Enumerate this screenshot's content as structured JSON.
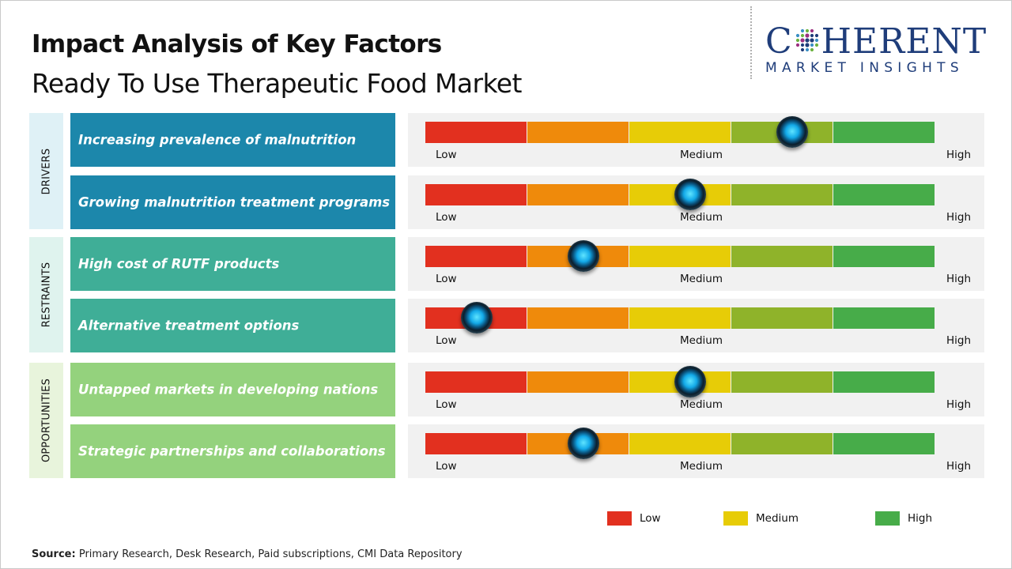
{
  "title": "Impact Analysis of Key Factors",
  "subtitle": "Ready To Use Therapeutic Food Market",
  "logo": {
    "top": "COHERENT",
    "bottom": "MARKET INSIGHTS"
  },
  "chart_data": {
    "type": "impact-gauge",
    "scale": [
      "Low",
      "Medium",
      "High"
    ],
    "segment_colors": [
      "#e2301f",
      "#ef8a0b",
      "#e7cc07",
      "#8fb32a",
      "#47ac49"
    ],
    "range": [
      0,
      1
    ],
    "categories": [
      {
        "name": "DRIVERS",
        "color": "#dff1f6",
        "factors": [
          {
            "label": "Increasing prevalence of malnutrition",
            "impact": 0.72,
            "color": "#1c87ab"
          },
          {
            "label": "Growing malnutrition treatment programs",
            "impact": 0.52,
            "color": "#1c87ab"
          }
        ]
      },
      {
        "name": "RESTRAINTS",
        "color": "#dff3ee",
        "factors": [
          {
            "label": " High cost of RUTF products",
            "impact": 0.31,
            "color": "#3fae97"
          },
          {
            "label": "Alternative treatment options",
            "impact": 0.1,
            "color": "#3fae97"
          }
        ]
      },
      {
        "name": "OPPORTUNITIES",
        "color": "#e8f4dc",
        "factors": [
          {
            "label": "Untapped markets in developing nations",
            "impact": 0.52,
            "color": "#94d27d"
          },
          {
            "label": "Strategic partnerships and collaborations",
            "impact": 0.31,
            "color": "#94d27d"
          }
        ]
      }
    ],
    "legend": [
      {
        "label": "Low",
        "color": "#e2301f"
      },
      {
        "label": "Medium",
        "color": "#e7cc07"
      },
      {
        "label": "High",
        "color": "#47ac49"
      }
    ]
  },
  "source": {
    "prefix": "Source:",
    "text": "Primary Research, Desk Research, Paid subscriptions, CMI Data Repository"
  }
}
